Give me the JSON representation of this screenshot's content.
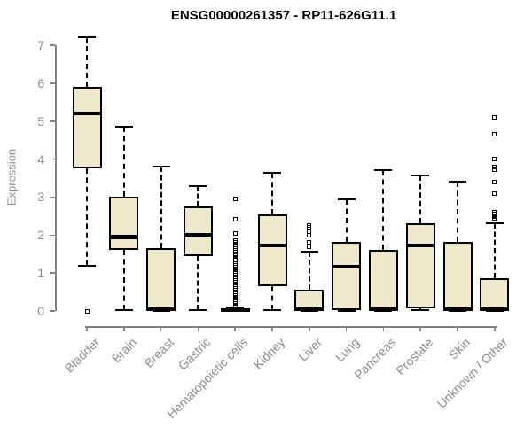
{
  "chart_data": {
    "type": "boxplot",
    "title": "ENSG00000261357 - RP11-626G11.1",
    "ylabel": "Expression",
    "xlabel": "",
    "ylim": [
      0,
      7
    ],
    "yticks": [
      0,
      1,
      2,
      3,
      4,
      5,
      6,
      7
    ],
    "grid": false,
    "legend": "none",
    "categories": [
      "Bladder",
      "Brain",
      "Breast",
      "Gastric",
      "Hematopoietic cells",
      "Kidney",
      "Liver",
      "Lung",
      "Pancreas",
      "Prostate",
      "Skin",
      "Unknown / Other"
    ],
    "boxes": [
      {
        "label": "Bladder",
        "min": 1.2,
        "q1": 3.75,
        "median": 5.2,
        "q3": 5.9,
        "max": 7.2,
        "outliers": [
          0.0
        ]
      },
      {
        "label": "Brain",
        "min": 0.03,
        "q1": 1.6,
        "median": 1.95,
        "q3": 3.0,
        "max": 4.85,
        "outliers": []
      },
      {
        "label": "Breast",
        "min": 0,
        "q1": 0,
        "median": 0.04,
        "q3": 1.65,
        "max": 3.8,
        "outliers": []
      },
      {
        "label": "Gastric",
        "min": 0.03,
        "q1": 1.45,
        "median": 2.0,
        "q3": 2.75,
        "max": 3.3,
        "outliers": []
      },
      {
        "label": "Hematopoietic cells",
        "min": 0,
        "q1": 0,
        "median": 0.03,
        "q3": 0.07,
        "max": 0.1,
        "outliers": [
          2.95,
          2.42,
          2.05,
          1.85,
          1.8,
          1.75,
          1.7,
          1.65,
          1.6,
          1.55,
          1.5,
          1.45,
          1.4,
          1.35,
          1.3,
          1.25,
          1.2,
          1.15,
          1.1,
          1.05,
          1.0,
          0.95,
          0.9,
          0.85,
          0.8,
          0.75,
          0.7,
          0.65,
          0.6,
          0.55,
          0.5,
          0.45,
          0.4,
          0.35,
          0.3,
          0.25,
          0.2,
          0.15,
          0.12
        ]
      },
      {
        "label": "Kidney",
        "min": 0.02,
        "q1": 0.65,
        "median": 1.72,
        "q3": 2.55,
        "max": 3.63,
        "outliers": []
      },
      {
        "label": "Liver",
        "min": 0,
        "q1": 0,
        "median": 0.04,
        "q3": 0.55,
        "max": 1.56,
        "outliers": [
          2.25,
          2.2,
          2.1,
          2.0,
          1.8,
          1.7
        ]
      },
      {
        "label": "Lung",
        "min": 0,
        "q1": 0.02,
        "median": 1.17,
        "q3": 1.81,
        "max": 2.95,
        "outliers": []
      },
      {
        "label": "Pancreas",
        "min": 0,
        "q1": 0,
        "median": 0.04,
        "q3": 1.62,
        "max": 3.71,
        "outliers": []
      },
      {
        "label": "Prostate",
        "min": 0.02,
        "q1": 0.06,
        "median": 1.72,
        "q3": 2.3,
        "max": 3.57,
        "outliers": []
      },
      {
        "label": "Skin",
        "min": 0,
        "q1": 0,
        "median": 0.04,
        "q3": 1.82,
        "max": 3.4,
        "outliers": []
      },
      {
        "label": "Unknown / Other",
        "min": 0,
        "q1": 0,
        "median": 0.04,
        "q3": 0.86,
        "max": 2.3,
        "outliers": [
          5.1,
          4.65,
          4.0,
          3.8,
          3.72,
          3.4,
          3.1,
          2.6,
          2.56,
          2.52,
          2.48,
          2.44
        ]
      }
    ],
    "colors": {
      "box_fill": "#EEE8CD",
      "box_border": "#000000",
      "median": "#000000",
      "whisker": "#000000",
      "outlier": "#000000",
      "axis": "#828282",
      "tick_label": "#8c8c8c",
      "title": "#000000",
      "background": "#ffffff"
    }
  }
}
